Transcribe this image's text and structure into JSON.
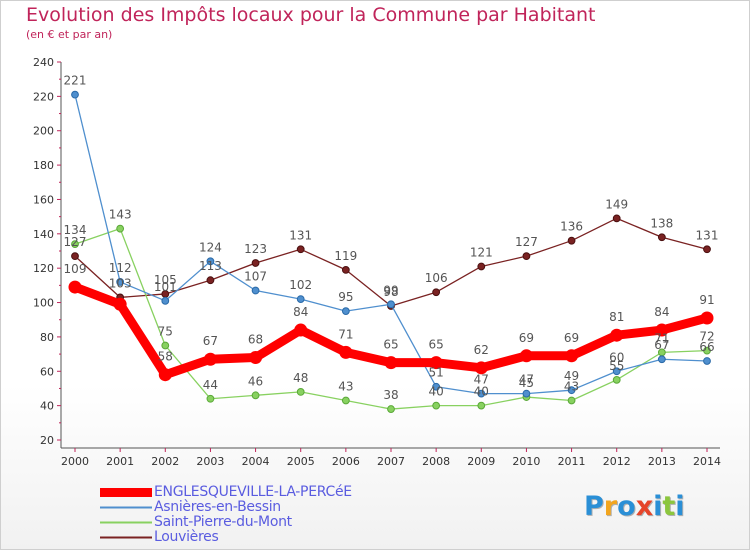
{
  "header": {
    "title": "Evolution des Impôts locaux pour la Commune par Habitant",
    "subtitle": "(en € et par an)"
  },
  "logo": {
    "text": "Proxiti",
    "colors": [
      "#2a8fd6",
      "#f2a51e",
      "#2a8fd6",
      "#e6452a",
      "#2a8fd6",
      "#8cc63e",
      "#2a8fd6"
    ]
  },
  "chart_data": {
    "type": "line",
    "title": "Evolution des Impôts locaux pour la Commune par Habitant",
    "subtitle": "(en € et par an)",
    "x": [
      "2000",
      "2001",
      "2002",
      "2003",
      "2004",
      "2005",
      "2006",
      "2007",
      "2008",
      "2009",
      "2010",
      "2011",
      "2012",
      "2013",
      "2014"
    ],
    "ylim": [
      20,
      240
    ],
    "yticks": [
      20,
      40,
      60,
      80,
      100,
      120,
      140,
      160,
      180,
      200,
      220,
      240
    ],
    "grid": false,
    "legend_position": "bottom-left",
    "series": [
      {
        "name": "ENGLESQUEVILLE-LA-PERCéE",
        "color": "#ff0000",
        "values": [
          109,
          99,
          58,
          67,
          68,
          84,
          71,
          65,
          65,
          62,
          69,
          69,
          81,
          84,
          91
        ],
        "labels": [
          "109",
          "",
          "58",
          "67",
          "68",
          "84",
          "71",
          "65",
          "65",
          "62",
          "69",
          "69",
          "81",
          "84",
          "91"
        ]
      },
      {
        "name": "Asnières-en-Bessin",
        "color": "#4f8fce",
        "values": [
          221,
          112,
          101,
          124,
          107,
          102,
          95,
          99,
          51,
          47,
          47,
          49,
          60,
          67,
          66
        ],
        "labels": [
          "221",
          "112",
          "101",
          "124",
          "107",
          "102",
          "95",
          "99",
          "51",
          "47",
          "47",
          "49",
          "60",
          "67",
          "66"
        ]
      },
      {
        "name": "Saint-Pierre-du-Mont",
        "color": "#88d160",
        "values": [
          134,
          143,
          75,
          44,
          46,
          48,
          43,
          38,
          40,
          40,
          45,
          43,
          55,
          71,
          72
        ],
        "labels": [
          "134",
          "143",
          "75",
          "44",
          "46",
          "48",
          "43",
          "38",
          "40",
          "40",
          "45",
          "43",
          "55",
          "71",
          "72"
        ]
      },
      {
        "name": "Louvières",
        "color": "#7a2222",
        "values": [
          127,
          103,
          105,
          113,
          123,
          131,
          119,
          98,
          106,
          121,
          127,
          136,
          149,
          138,
          131
        ],
        "labels": [
          "127",
          "103",
          "105",
          "113",
          "123",
          "131",
          "119",
          "98",
          "106",
          "121",
          "127",
          "136",
          "149",
          "138",
          "131"
        ]
      }
    ]
  }
}
